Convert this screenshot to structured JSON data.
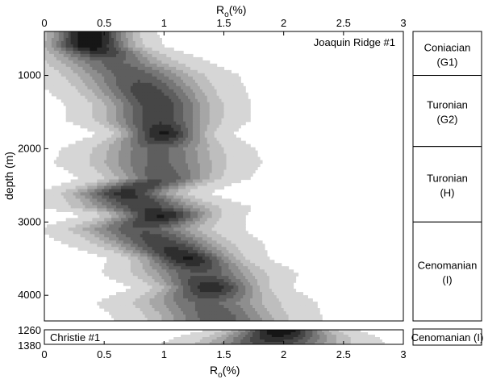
{
  "chart_data": [
    {
      "type": "heatmap",
      "panel_label": "Joaquin Ridge #1",
      "xlabel_main": "R",
      "xlabel_sub": "o",
      "xlabel_unit": "(%)",
      "ylabel": "depth (m)",
      "xlim": [
        0,
        3
      ],
      "ylim": [
        400,
        4350
      ],
      "x_ticks": [
        "0",
        "0.5",
        "1",
        "1.5",
        "2",
        "2.5",
        "3"
      ],
      "y_ticks": [
        "1000",
        "2000",
        "3000",
        "4000"
      ],
      "density_profile": [
        {
          "depth": 450,
          "peak": 0.38,
          "width": 0.2,
          "strength": 1.0
        },
        {
          "depth": 600,
          "peak": 0.38,
          "width": 0.22,
          "strength": 0.95
        },
        {
          "depth": 800,
          "peak": 0.55,
          "width": 0.3,
          "strength": 0.55
        },
        {
          "depth": 1000,
          "peak": 0.75,
          "width": 0.32,
          "strength": 0.6
        },
        {
          "depth": 1200,
          "peak": 0.85,
          "width": 0.3,
          "strength": 0.7
        },
        {
          "depth": 1400,
          "peak": 0.95,
          "width": 0.28,
          "strength": 0.72
        },
        {
          "depth": 1600,
          "peak": 0.95,
          "width": 0.28,
          "strength": 0.7
        },
        {
          "depth": 1800,
          "peak": 1.0,
          "width": 0.2,
          "strength": 0.9
        },
        {
          "depth": 2000,
          "peak": 0.95,
          "width": 0.3,
          "strength": 0.55
        },
        {
          "depth": 2200,
          "peak": 0.95,
          "width": 0.32,
          "strength": 0.55
        },
        {
          "depth": 2400,
          "peak": 1.0,
          "width": 0.26,
          "strength": 0.62
        },
        {
          "depth": 2600,
          "peak": 0.65,
          "width": 0.26,
          "strength": 0.8
        },
        {
          "depth": 2800,
          "peak": 0.85,
          "width": 0.32,
          "strength": 0.7
        },
        {
          "depth": 2900,
          "peak": 1.0,
          "width": 0.24,
          "strength": 0.9
        },
        {
          "depth": 3100,
          "peak": 0.8,
          "width": 0.32,
          "strength": 0.62
        },
        {
          "depth": 3300,
          "peak": 1.0,
          "width": 0.3,
          "strength": 0.72
        },
        {
          "depth": 3500,
          "peak": 1.2,
          "width": 0.24,
          "strength": 0.88
        },
        {
          "depth": 3700,
          "peak": 1.3,
          "width": 0.3,
          "strength": 0.62
        },
        {
          "depth": 3900,
          "peak": 1.4,
          "width": 0.24,
          "strength": 0.85
        },
        {
          "depth": 4100,
          "peak": 1.35,
          "width": 0.34,
          "strength": 0.55
        },
        {
          "depth": 4300,
          "peak": 1.45,
          "width": 0.32,
          "strength": 0.6
        }
      ],
      "strat_units": [
        {
          "name": "Coniacian",
          "code": "(G1)",
          "top": 400,
          "base": 1000
        },
        {
          "name": "Turonian",
          "code": "(G2)",
          "top": 1000,
          "base": 1970
        },
        {
          "name": "Turonian",
          "code": "(H)",
          "top": 1970,
          "base": 3000
        },
        {
          "name": "Cenomanian",
          "code": "(I)",
          "top": 3000,
          "base": 4350
        }
      ]
    },
    {
      "type": "heatmap",
      "panel_label": "Christie #1",
      "xlabel_main": "R",
      "xlabel_sub": "o",
      "xlabel_unit": "(%)",
      "xlim": [
        0,
        3
      ],
      "ylim": [
        1260,
        1380
      ],
      "x_ticks": [
        "0",
        "0.5",
        "1",
        "1.5",
        "2",
        "2.5",
        "3"
      ],
      "y_ticks": [
        "1260",
        "1380"
      ],
      "density_profile": [
        {
          "depth": 1260,
          "peak": 1.98,
          "width": 0.22,
          "strength": 1.0
        },
        {
          "depth": 1320,
          "peak": 1.95,
          "width": 0.3,
          "strength": 0.85
        },
        {
          "depth": 1380,
          "peak": 1.9,
          "width": 0.34,
          "strength": 0.7
        }
      ],
      "strat_units": [
        {
          "name": "Cenomanian (I)",
          "code": "",
          "top": 1260,
          "base": 1380
        }
      ]
    }
  ]
}
